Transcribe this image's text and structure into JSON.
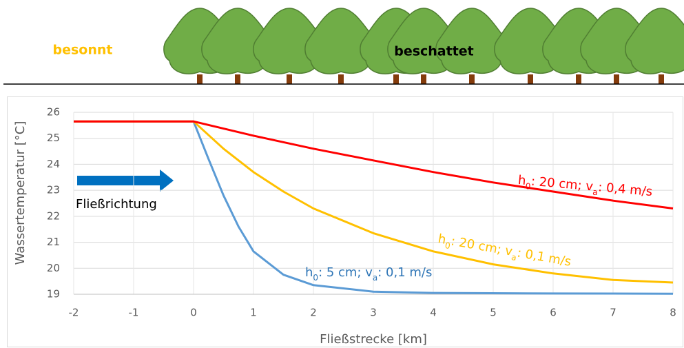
{
  "header": {
    "left_label": "besonnt",
    "right_label": "beschattet"
  },
  "chart_data": {
    "type": "line",
    "x_label": "Fließstrecke [km]",
    "y_label": "Wassertemperatur [°C]",
    "xlim": [
      -2,
      8
    ],
    "xticks": [
      -2,
      -1,
      0,
      1,
      2,
      3,
      4,
      5,
      6,
      7,
      8
    ],
    "ylim": [
      19,
      26
    ],
    "yticks": [
      19,
      20,
      21,
      22,
      23,
      24,
      25,
      26
    ],
    "grid": true,
    "series": [
      {
        "color": "#5b9bd5",
        "x": [
          -2,
          0,
          0.25,
          0.5,
          0.75,
          1,
          1.5,
          2,
          3,
          4,
          6,
          8
        ],
        "values": [
          25.65,
          25.65,
          24.2,
          22.8,
          21.6,
          20.65,
          19.75,
          19.35,
          19.1,
          19.05,
          19.03,
          19.02
        ]
      },
      {
        "color": "#ffc000",
        "x": [
          -2,
          0,
          0.5,
          1,
          1.5,
          2,
          3,
          4,
          5,
          6,
          7,
          8
        ],
        "values": [
          25.65,
          25.65,
          24.6,
          23.7,
          22.95,
          22.3,
          21.35,
          20.65,
          20.15,
          19.8,
          19.55,
          19.45
        ]
      },
      {
        "color": "#ff0000",
        "x": [
          -2,
          0,
          1,
          2,
          3,
          4,
          5,
          6,
          7,
          8
        ],
        "values": [
          25.65,
          25.65,
          25.1,
          24.6,
          24.15,
          23.7,
          23.3,
          22.95,
          22.6,
          22.3
        ]
      }
    ],
    "annotations": [
      {
        "parts": [
          "h",
          "0",
          ": 5 cm;  v",
          "a",
          ": 0,1 m/s"
        ],
        "color": "#2e75b6"
      },
      {
        "parts": [
          "h",
          "0",
          ": 20 cm;  v",
          "a",
          ": 0,1 m/s"
        ],
        "color": "#ffc000"
      },
      {
        "parts": [
          "h",
          "0",
          ": 20 cm;  v",
          "a",
          ": 0,4 m/s"
        ],
        "color": "#ff0000"
      }
    ],
    "flow_label": "Fließrichtung"
  }
}
